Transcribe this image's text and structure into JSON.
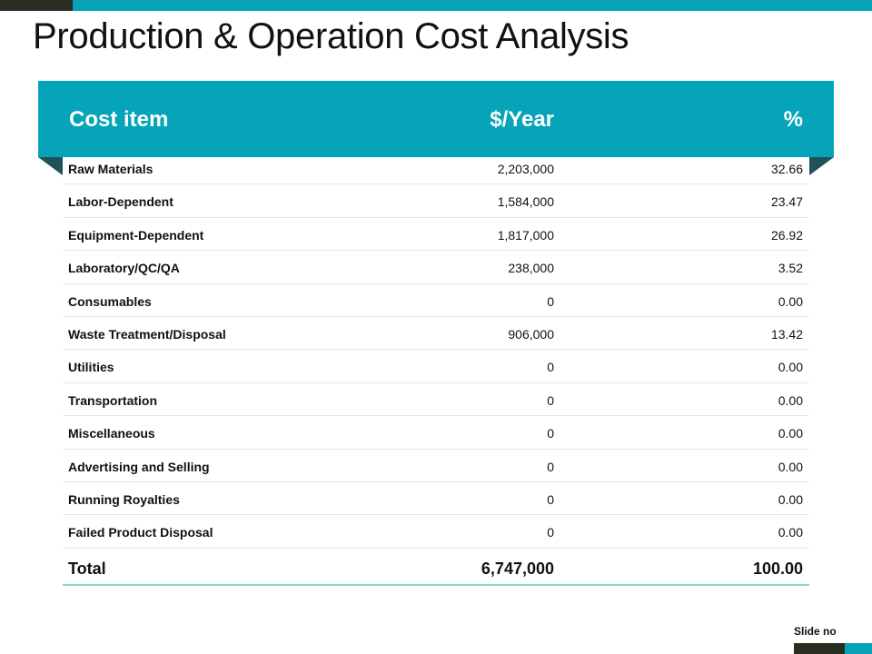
{
  "slide": {
    "title": "Production & Operation Cost Analysis",
    "slide_no_label": "Slide no"
  },
  "table": {
    "headers": {
      "item": "Cost item",
      "year": "$/Year",
      "pct": "%"
    },
    "rows": [
      {
        "name": "Raw Materials",
        "year": "2,203,000",
        "pct": "32.66"
      },
      {
        "name": "Labor-Dependent",
        "year": "1,584,000",
        "pct": "23.47"
      },
      {
        "name": "Equipment-Dependent",
        "year": "1,817,000",
        "pct": "26.92"
      },
      {
        "name": "Laboratory/QC/QA",
        "year": "238,000",
        "pct": "3.52"
      },
      {
        "name": "Consumables",
        "year": "0",
        "pct": "0.00"
      },
      {
        "name": "Waste Treatment/Disposal",
        "year": "906,000",
        "pct": "13.42"
      },
      {
        "name": "Utilities",
        "year": "0",
        "pct": "0.00"
      },
      {
        "name": "Transportation",
        "year": "0",
        "pct": "0.00"
      },
      {
        "name": "Miscellaneous",
        "year": "0",
        "pct": "0.00"
      },
      {
        "name": "Advertising and Selling",
        "year": "0",
        "pct": "0.00"
      },
      {
        "name": "Running Royalties",
        "year": "0",
        "pct": "0.00"
      },
      {
        "name": "Failed Product Disposal",
        "year": "0",
        "pct": "0.00"
      }
    ],
    "total": {
      "name": "Total",
      "year": "6,747,000",
      "pct": "100.00"
    }
  },
  "colors": {
    "accent": "#06a4b8",
    "dark": "#2a2d22",
    "fold": "#1f5259"
  }
}
